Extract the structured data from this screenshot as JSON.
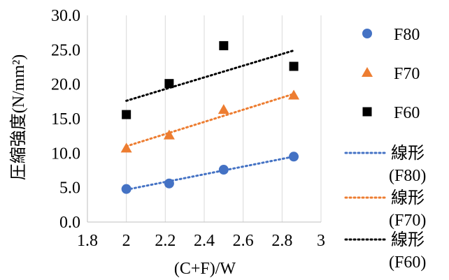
{
  "chart_data": {
    "type": "scatter",
    "xlabel": "(C+F)/W",
    "ylabel": "圧縮強度(N/mm²)",
    "xlim": [
      1.8,
      3.0
    ],
    "ylim": [
      0.0,
      30.0
    ],
    "x_ticks": [
      "1.8",
      "2",
      "2.2",
      "2.4",
      "2.6",
      "2.8",
      "3"
    ],
    "y_ticks": [
      "0.0",
      "5.0",
      "10.0",
      "15.0",
      "20.0",
      "25.0",
      "30.0"
    ],
    "grid": "vertical",
    "legend_position": "right",
    "series": [
      {
        "name": "F80",
        "marker": "circle",
        "color": "#4472C4",
        "x": [
          2.0,
          2.22,
          2.5,
          2.86
        ],
        "y": [
          4.8,
          5.6,
          7.6,
          9.5
        ]
      },
      {
        "name": "F70",
        "marker": "triangle",
        "color": "#ED7D31",
        "x": [
          2.0,
          2.22,
          2.5,
          2.86
        ],
        "y": [
          10.7,
          12.6,
          16.3,
          18.4
        ]
      },
      {
        "name": "F60",
        "marker": "square",
        "color": "#000000",
        "x": [
          2.0,
          2.22,
          2.5,
          2.86
        ],
        "y": [
          15.6,
          20.1,
          25.6,
          22.6
        ]
      }
    ],
    "trendlines": [
      {
        "name": "線形\n(F80)",
        "color": "#4472C4",
        "x": [
          2.0,
          2.86
        ],
        "y": [
          4.7,
          9.5
        ]
      },
      {
        "name": "線形\n(F70)",
        "color": "#ED7D31",
        "x": [
          2.0,
          2.86
        ],
        "y": [
          11.0,
          18.6
        ]
      },
      {
        "name": "線形\n(F60)",
        "color": "#000000",
        "x": [
          2.0,
          2.86
        ],
        "y": [
          17.6,
          24.9
        ]
      }
    ]
  }
}
